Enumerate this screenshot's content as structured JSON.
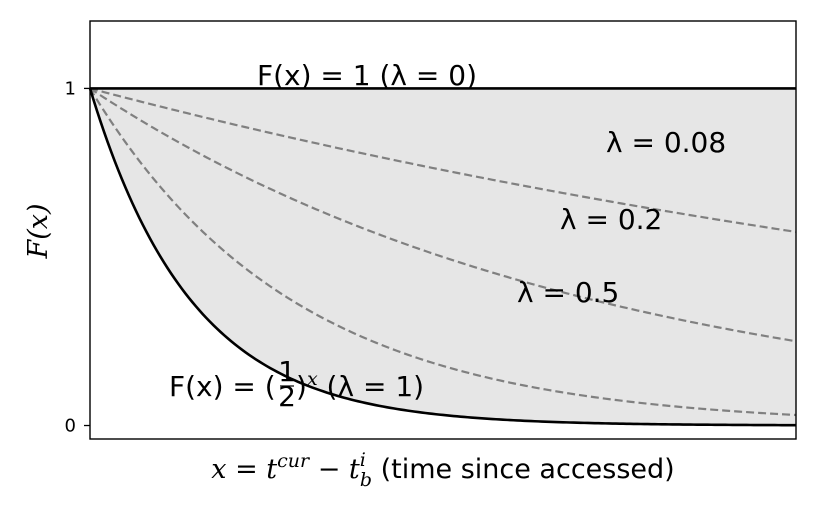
{
  "chart_data": {
    "type": "line",
    "xlim": [
      0,
      10
    ],
    "ylim": [
      -0.04,
      1.2
    ],
    "x_ticks": [],
    "y_ticks": [
      {
        "value": 0,
        "label": "0"
      },
      {
        "value": 1,
        "label": "1"
      }
    ],
    "xlabel": {
      "math_lhs": "x = t",
      "sup_1": "cur",
      "minus": " − t",
      "sub_2": "b",
      "sup_2": "i",
      "text": " (time since accessed)"
    },
    "ylabel": "F(x)",
    "fill_between": {
      "upper": "F(x) = 1",
      "lower": "F(x) = (1/2)^x",
      "color": "#e6e6e6"
    },
    "series": [
      {
        "lambda": 0,
        "formula": "1",
        "style": "solid",
        "color": "#000000"
      },
      {
        "lambda": 0.08,
        "formula": "(1/2)^(0.08x)",
        "style": "dashed",
        "color": "#808080"
      },
      {
        "lambda": 0.2,
        "formula": "(1/2)^(0.2x)",
        "style": "dashed",
        "color": "#808080"
      },
      {
        "lambda": 0.5,
        "formula": "(1/2)^(0.5x)",
        "style": "dashed",
        "color": "#808080"
      },
      {
        "lambda": 1,
        "formula": "(1/2)^x",
        "style": "solid",
        "color": "#000000"
      }
    ],
    "annotations": {
      "lambda0": "F(x) = 1 (λ = 0)",
      "lambda008": "λ = 0.08",
      "lambda02": "λ = 0.2",
      "lambda05": "λ = 0.5",
      "lambda1_lhs": "F(x) = (",
      "lambda1_num": "1",
      "lambda1_den": "2",
      "lambda1_mid": ")",
      "lambda1_sup": "x",
      "lambda1_rhs": " (λ = 1)"
    }
  }
}
